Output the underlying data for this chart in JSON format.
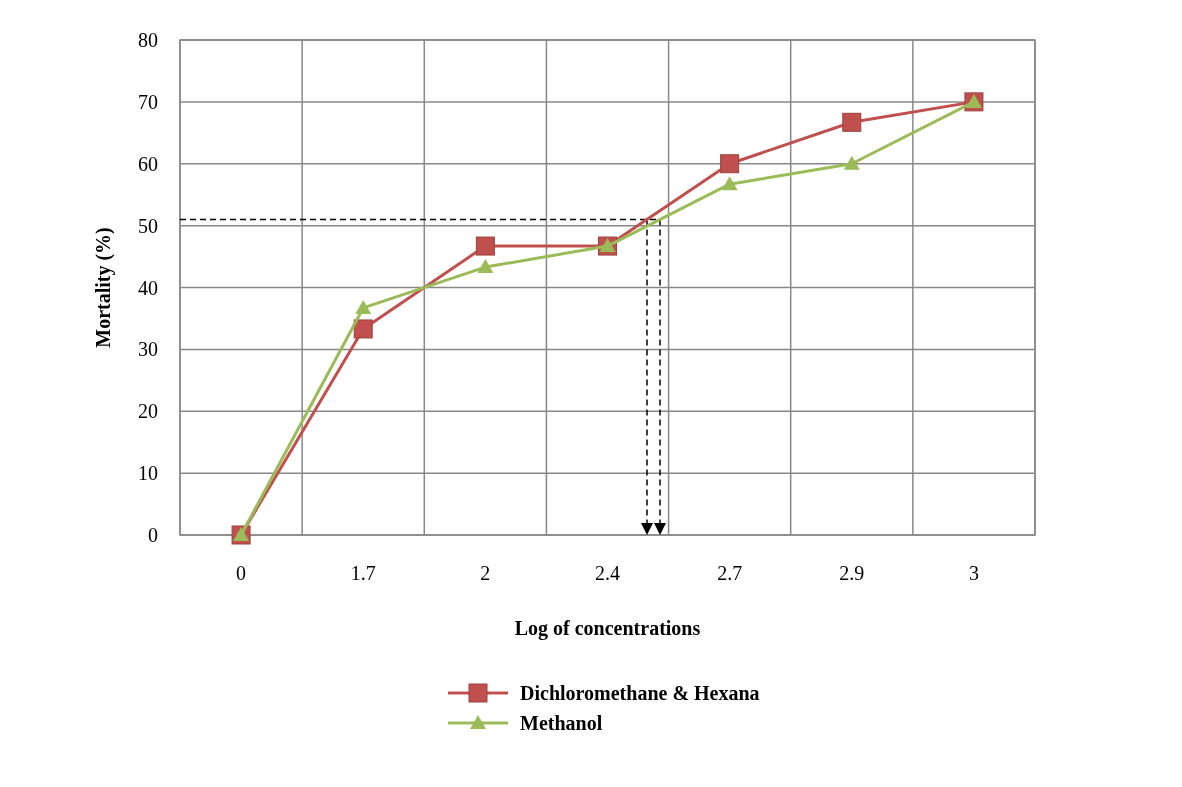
{
  "chart_data": {
    "type": "line",
    "xlabel": "Log of concentrations",
    "ylabel": "Mortality (%)",
    "categories": [
      "0",
      "1.7",
      "2",
      "2.4",
      "2.7",
      "2.9",
      "3"
    ],
    "series": [
      {
        "name": "Dichloromethane & Hexana",
        "color": "#c0504d",
        "marker": "square",
        "values": [
          0,
          33.3,
          46.7,
          46.7,
          60,
          66.7,
          70
        ]
      },
      {
        "name": "Methanol",
        "color": "#9bbb59",
        "marker": "triangle",
        "values": [
          0,
          36.7,
          43.3,
          46.7,
          56.7,
          60,
          70
        ]
      }
    ],
    "ylim": [
      0,
      80
    ],
    "yticks": [
      0,
      10,
      20,
      30,
      40,
      50,
      60,
      70,
      80
    ],
    "grid": true,
    "legend": "bottom",
    "ref_lines": [
      {
        "axis": "y",
        "value": 51,
        "color": "#000000",
        "line_style": "dashed"
      }
    ]
  }
}
